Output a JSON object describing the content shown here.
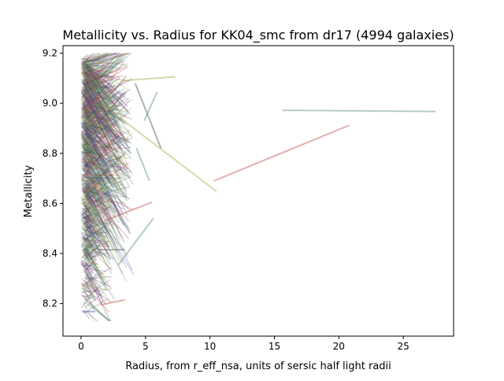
{
  "chart_data": {
    "type": "line",
    "title": "Metallicity vs. Radius for KK04_smc from dr17 (4994 galaxies)",
    "xlabel": "Radius, from r_eff_nsa, units of sersic half light radii",
    "ylabel": "Metallicity",
    "xlim": [
      -1.4,
      28.9
    ],
    "ylim": [
      8.07,
      9.23
    ],
    "xticks": [
      0,
      5,
      10,
      15,
      20,
      25
    ],
    "yticks": [
      8.2,
      8.4,
      8.6,
      8.8,
      9.0,
      9.2
    ],
    "xtick_labels": [
      "0",
      "5",
      "10",
      "15",
      "20",
      "25"
    ],
    "ytick_labels": [
      "8.2",
      "8.4",
      "8.6",
      "8.8",
      "9.0",
      "9.2"
    ],
    "grid": false,
    "legend": "none",
    "n_galaxies": 4994,
    "colors": [
      "#4a55a2",
      "#5e9a5a",
      "#b03a3a",
      "#8aa84a",
      "#2a5a5a",
      "#8a3a8a",
      "#555555"
    ],
    "notable_segments": [
      {
        "x": [
          15.6,
          27.5
        ],
        "y": [
          8.972,
          8.967
        ],
        "color": "#5e8f78"
      },
      {
        "x": [
          10.3,
          20.8
        ],
        "y": [
          8.69,
          8.912
        ],
        "color": "#c05050"
      },
      {
        "x": [
          3.2,
          7.3
        ],
        "y": [
          9.09,
          9.106
        ],
        "color": "#9ab04a"
      },
      {
        "x": [
          1.8,
          10.5
        ],
        "y": [
          8.99,
          8.648
        ],
        "color": "#9ab04a"
      },
      {
        "x": [
          4.2,
          6.2
        ],
        "y": [
          9.08,
          8.82
        ],
        "color": "#555555"
      },
      {
        "x": [
          4.9,
          5.9
        ],
        "y": [
          8.93,
          9.045
        ],
        "color": "#5e8f78"
      },
      {
        "x": [
          4.3,
          5.3
        ],
        "y": [
          8.82,
          8.69
        ],
        "color": "#5e8f78"
      },
      {
        "x": [
          1.8,
          5.5
        ],
        "y": [
          8.53,
          8.605
        ],
        "color": "#c05050"
      },
      {
        "x": [
          2.9,
          5.6
        ],
        "y": [
          8.355,
          8.54
        ],
        "color": "#5e8f78"
      },
      {
        "x": [
          1.5,
          3.4
        ],
        "y": [
          8.195,
          8.215
        ],
        "color": "#c05050"
      },
      {
        "x": [
          1.4,
          3.4
        ],
        "y": [
          8.415,
          8.415
        ],
        "color": "#555555"
      },
      {
        "x": [
          0.1,
          1.1
        ],
        "y": [
          8.168,
          8.168
        ],
        "color": "#4a55a2"
      },
      {
        "x": [
          1.2,
          1.6
        ],
        "y": [
          9.13,
          9.19
        ],
        "color": "#9ab04a"
      }
    ]
  }
}
